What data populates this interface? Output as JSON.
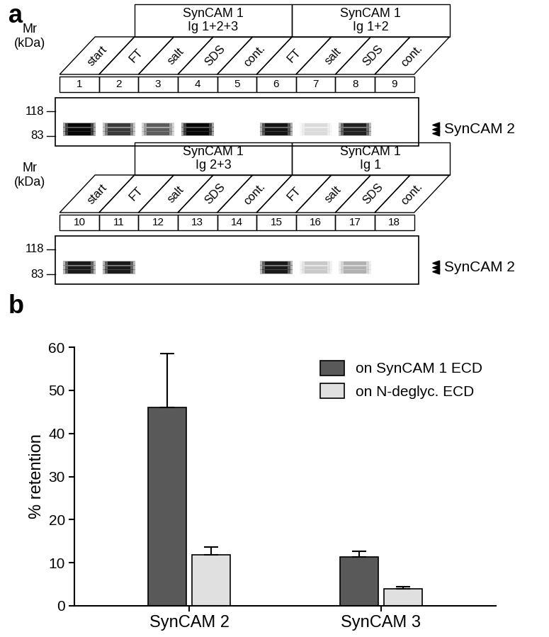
{
  "blot": {
    "panel_label": "a",
    "mass_label": [
      "Mr",
      "(kDa)"
    ],
    "markers": [
      118,
      83
    ],
    "band_kDa": [
      97,
      91,
      86
    ],
    "protein": "SynCAM 2",
    "rows": [
      {
        "groups": [
          {
            "label": "SynCAM 1\nIg 1+2+3",
            "lanes": [
              2,
              5
            ]
          },
          {
            "label": "SynCAM 1\nIg 1+2",
            "lanes": [
              6,
              9
            ]
          }
        ],
        "lanes": [
          {
            "number": 1,
            "label": "start",
            "intensity": 1.0
          },
          {
            "number": 2,
            "label": "FT",
            "intensity": 0.6
          },
          {
            "number": 3,
            "label": "salt",
            "intensity": 0.45
          },
          {
            "number": 4,
            "label": "SDS",
            "intensity": 1.0
          },
          {
            "number": 5,
            "label": "cont.",
            "intensity": 0.0
          },
          {
            "number": 6,
            "label": "FT",
            "intensity": 0.85
          },
          {
            "number": 7,
            "label": "salt",
            "intensity": 0.08
          },
          {
            "number": 8,
            "label": "SDS",
            "intensity": 0.75
          },
          {
            "number": 9,
            "label": "cont.",
            "intensity": 0.0
          }
        ]
      },
      {
        "groups": [
          {
            "label": "SynCAM 1\nIg 2+3",
            "lanes": [
              11,
              14
            ]
          },
          {
            "label": "SynCAM 1\nIg 1",
            "lanes": [
              15,
              18
            ]
          }
        ],
        "lanes": [
          {
            "number": 10,
            "label": "start",
            "intensity": 0.8
          },
          {
            "number": 11,
            "label": "FT",
            "intensity": 0.8
          },
          {
            "number": 12,
            "label": "salt",
            "intensity": 0.0
          },
          {
            "number": 13,
            "label": "SDS",
            "intensity": 0.0
          },
          {
            "number": 14,
            "label": "cont.",
            "intensity": 0.0
          },
          {
            "number": 15,
            "label": "FT",
            "intensity": 0.8
          },
          {
            "number": 16,
            "label": "salt",
            "intensity": 0.12
          },
          {
            "number": 17,
            "label": "SDS",
            "intensity": 0.18
          },
          {
            "number": 18,
            "label": "cont.",
            "intensity": 0.0
          }
        ]
      }
    ]
  },
  "chart_data": {
    "type": "bar",
    "title": "b",
    "ylabel": "% retention",
    "categories": [
      "SynCAM 2",
      "SynCAM 3"
    ],
    "series": [
      {
        "name": "on SynCAM 1 ECD",
        "color": "#595959",
        "values": [
          46.0,
          11.3
        ],
        "errors": [
          12.5,
          1.3
        ]
      },
      {
        "name": "on N-deglyc. ECD",
        "color": "#e0e0e0",
        "values": [
          11.8,
          4.0
        ],
        "errors": [
          1.8,
          0.5
        ]
      }
    ],
    "ylim": [
      0,
      60
    ],
    "yticks": [
      0,
      10,
      20,
      30,
      40,
      50,
      60
    ],
    "legend": "upper right"
  }
}
